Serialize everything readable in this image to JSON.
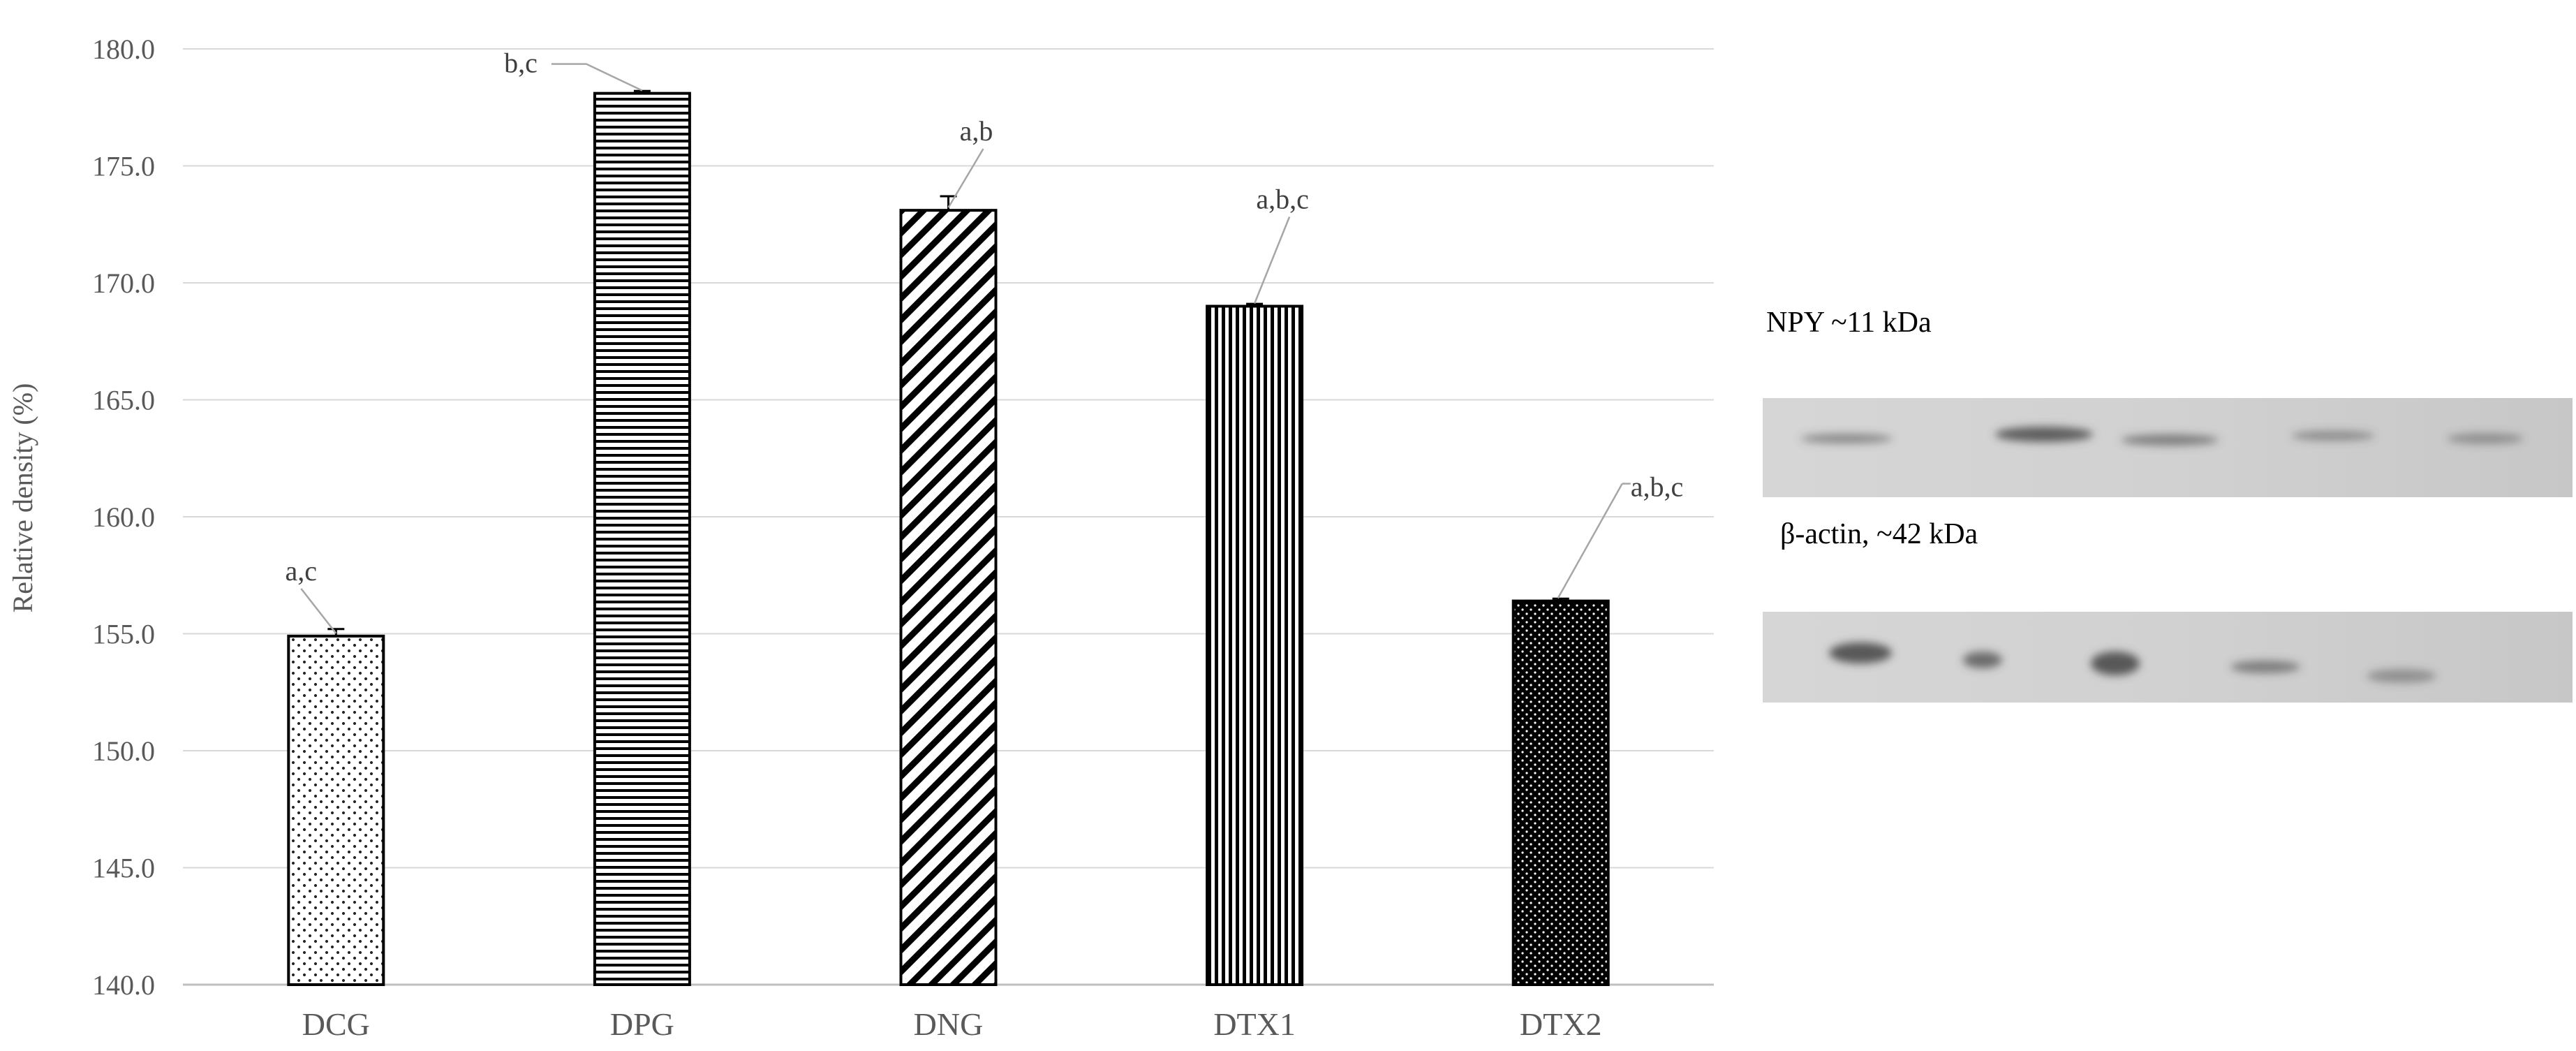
{
  "chart_data": {
    "type": "bar",
    "categories": [
      "DCG",
      "DPG",
      "DNG",
      "DTX1",
      "DTX2"
    ],
    "values": [
      154.9,
      178.1,
      173.1,
      169.0,
      156.4
    ],
    "errors": [
      0.3,
      0.1,
      0.6,
      0.1,
      0.1
    ],
    "annotations": [
      "a,c",
      "b,c",
      "a,b",
      "a,b,c",
      "a,b,c"
    ],
    "patterns": [
      "dots",
      "horizontal-lines",
      "diagonal-lines",
      "vertical-lines",
      "dense-dots-dark"
    ],
    "ylabel": "Relative density (%)",
    "xlabel": "",
    "title": "",
    "ylim": [
      140,
      180
    ],
    "yticks": [
      "140.0",
      "145.0",
      "150.0",
      "155.0",
      "160.0",
      "165.0",
      "170.0",
      "175.0",
      "180.0"
    ],
    "grid": true,
    "legend": "none"
  },
  "blot": {
    "npy_label": "NPY ~11 kDa",
    "actin_label": "β-actin, ~42 kDa"
  },
  "colors": {
    "grid": "#d9d9d9",
    "axis_text": "#595959",
    "bar_stroke": "#000000",
    "blot_bg": "#d3d3d3",
    "band": "#4a4a4a"
  }
}
